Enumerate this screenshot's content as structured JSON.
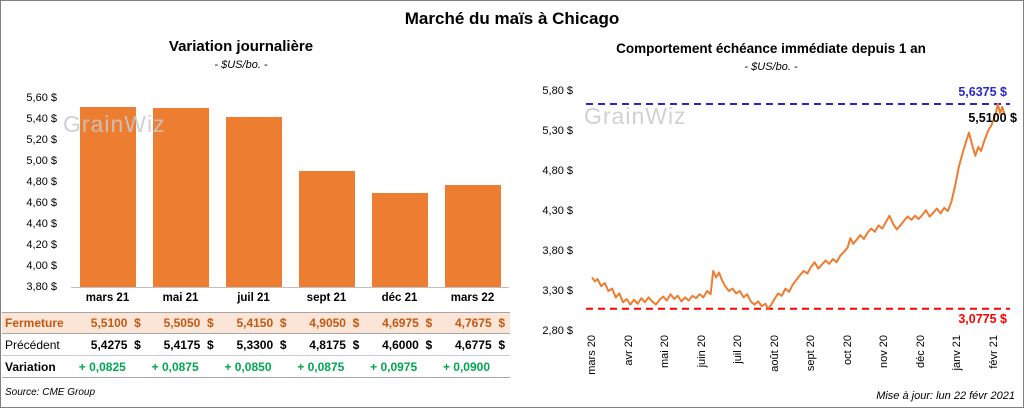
{
  "page": {
    "title": "Marché du maïs à Chicago",
    "source": "Source: CME Group",
    "updated": "Mise à jour: lun 22 févr 2021",
    "watermark": "GrainWiz"
  },
  "colors": {
    "bar": "#ED7D31",
    "line": "#ED7D31",
    "high_line": "#2929C8",
    "low_line": "#FF0000",
    "close_row_bg": "#FBE5D6",
    "close_row_text": "#C45911",
    "variation_text": "#00A651"
  },
  "chart_data": [
    {
      "type": "bar",
      "title": "Variation journalière",
      "subtitle": "- $US/bo. -",
      "categories": [
        "mars 21",
        "mai 21",
        "juil 21",
        "sept 21",
        "déc 21",
        "mars 22"
      ],
      "values": [
        5.51,
        5.505,
        5.415,
        4.905,
        4.6975,
        4.7675
      ],
      "ylim": [
        3.8,
        5.6
      ],
      "ytick_step": 0.2,
      "ytick_labels": [
        "5,60 $",
        "5,40 $",
        "5,20 $",
        "5,00 $",
        "4,80 $",
        "4,60 $",
        "4,40 $",
        "4,20 $",
        "4,00 $",
        "3,80 $"
      ],
      "grid": false,
      "legend": "none"
    },
    {
      "type": "line",
      "title": "Comportement échéance immédiate depuis 1 an",
      "subtitle": "- $US/bo. -",
      "x_labels": [
        "mars 20",
        "avr 20",
        "mai 20",
        "juin 20",
        "juil 20",
        "août 20",
        "sept 20",
        "oct 20",
        "nov 20",
        "déc 20",
        "janv 21",
        "févr 21"
      ],
      "ylim": [
        2.8,
        5.8
      ],
      "ytick_labels": [
        "5,80 $",
        "5,30 $",
        "4,80 $",
        "4,30 $",
        "3,80 $",
        "3,30 $",
        "2,80 $"
      ],
      "high_value": 5.6375,
      "high_label": "5,6375 $",
      "last_value": 5.51,
      "last_label": "5,5100 $",
      "low_value": 3.0775,
      "low_label": "3,0775 $",
      "grid": false,
      "legend": "none",
      "series": [
        {
          "name": "échéance immédiate",
          "points": [
            [
              0.0,
              3.47
            ],
            [
              0.08,
              3.42
            ],
            [
              0.15,
              3.45
            ],
            [
              0.25,
              3.36
            ],
            [
              0.35,
              3.4
            ],
            [
              0.45,
              3.3
            ],
            [
              0.55,
              3.33
            ],
            [
              0.65,
              3.22
            ],
            [
              0.75,
              3.27
            ],
            [
              0.85,
              3.16
            ],
            [
              0.95,
              3.2
            ],
            [
              1.05,
              3.13
            ],
            [
              1.15,
              3.19
            ],
            [
              1.25,
              3.14
            ],
            [
              1.35,
              3.21
            ],
            [
              1.45,
              3.16
            ],
            [
              1.55,
              3.22
            ],
            [
              1.65,
              3.17
            ],
            [
              1.75,
              3.13
            ],
            [
              1.85,
              3.19
            ],
            [
              1.95,
              3.23
            ],
            [
              2.05,
              3.18
            ],
            [
              2.15,
              3.26
            ],
            [
              2.25,
              3.2
            ],
            [
              2.35,
              3.24
            ],
            [
              2.45,
              3.17
            ],
            [
              2.55,
              3.22
            ],
            [
              2.65,
              3.18
            ],
            [
              2.75,
              3.24
            ],
            [
              2.85,
              3.21
            ],
            [
              2.95,
              3.26
            ],
            [
              3.05,
              3.22
            ],
            [
              3.15,
              3.3
            ],
            [
              3.25,
              3.26
            ],
            [
              3.32,
              3.55
            ],
            [
              3.4,
              3.47
            ],
            [
              3.48,
              3.53
            ],
            [
              3.56,
              3.44
            ],
            [
              3.65,
              3.36
            ],
            [
              3.75,
              3.3
            ],
            [
              3.85,
              3.33
            ],
            [
              3.95,
              3.27
            ],
            [
              4.05,
              3.3
            ],
            [
              4.15,
              3.22
            ],
            [
              4.25,
              3.26
            ],
            [
              4.35,
              3.17
            ],
            [
              4.45,
              3.13
            ],
            [
              4.55,
              3.17
            ],
            [
              4.65,
              3.11
            ],
            [
              4.75,
              3.14
            ],
            [
              4.82,
              3.08
            ],
            [
              4.9,
              3.12
            ],
            [
              5.0,
              3.2
            ],
            [
              5.1,
              3.27
            ],
            [
              5.2,
              3.24
            ],
            [
              5.3,
              3.33
            ],
            [
              5.4,
              3.29
            ],
            [
              5.5,
              3.38
            ],
            [
              5.6,
              3.44
            ],
            [
              5.7,
              3.5
            ],
            [
              5.8,
              3.55
            ],
            [
              5.9,
              3.52
            ],
            [
              6.0,
              3.6
            ],
            [
              6.1,
              3.66
            ],
            [
              6.2,
              3.58
            ],
            [
              6.3,
              3.63
            ],
            [
              6.4,
              3.68
            ],
            [
              6.5,
              3.64
            ],
            [
              6.6,
              3.7
            ],
            [
              6.7,
              3.66
            ],
            [
              6.8,
              3.74
            ],
            [
              6.9,
              3.79
            ],
            [
              7.0,
              3.84
            ],
            [
              7.08,
              3.96
            ],
            [
              7.16,
              3.89
            ],
            [
              7.25,
              3.94
            ],
            [
              7.35,
              4.0
            ],
            [
              7.45,
              3.95
            ],
            [
              7.55,
              4.03
            ],
            [
              7.65,
              4.08
            ],
            [
              7.75,
              4.04
            ],
            [
              7.85,
              4.12
            ],
            [
              7.95,
              4.08
            ],
            [
              8.05,
              4.16
            ],
            [
              8.15,
              4.24
            ],
            [
              8.25,
              4.14
            ],
            [
              8.35,
              4.07
            ],
            [
              8.45,
              4.12
            ],
            [
              8.55,
              4.18
            ],
            [
              8.65,
              4.23
            ],
            [
              8.75,
              4.19
            ],
            [
              8.85,
              4.24
            ],
            [
              8.95,
              4.2
            ],
            [
              9.05,
              4.25
            ],
            [
              9.15,
              4.31
            ],
            [
              9.25,
              4.23
            ],
            [
              9.35,
              4.28
            ],
            [
              9.45,
              4.33
            ],
            [
              9.55,
              4.27
            ],
            [
              9.65,
              4.34
            ],
            [
              9.75,
              4.3
            ],
            [
              9.85,
              4.42
            ],
            [
              9.95,
              4.62
            ],
            [
              10.05,
              4.85
            ],
            [
              10.15,
              5.02
            ],
            [
              10.25,
              5.17
            ],
            [
              10.33,
              5.28
            ],
            [
              10.42,
              5.12
            ],
            [
              10.5,
              4.99
            ],
            [
              10.58,
              5.1
            ],
            [
              10.66,
              5.05
            ],
            [
              10.75,
              5.18
            ],
            [
              10.85,
              5.3
            ],
            [
              10.95,
              5.38
            ],
            [
              11.05,
              5.5
            ],
            [
              11.12,
              5.64
            ],
            [
              11.18,
              5.52
            ],
            [
              11.24,
              5.6
            ],
            [
              11.3,
              5.51
            ]
          ]
        }
      ]
    }
  ],
  "table": {
    "rows": [
      {
        "label": "Fermeture",
        "values": [
          "5,5100  $",
          "5,5050  $",
          "5,4150  $",
          "4,9050  $",
          "4,6975  $",
          "4,7675  $"
        ]
      },
      {
        "label": "Précédent",
        "values": [
          "5,4275  $",
          "5,4175  $",
          "5,3300  $",
          "4,8175  $",
          "4,6000  $",
          "4,6775  $"
        ]
      },
      {
        "label": "Variation",
        "values": [
          "+ 0,0825",
          "+ 0,0875",
          "+ 0,0850",
          "+ 0,0875",
          "+ 0,0975",
          "+ 0,0900"
        ]
      }
    ]
  }
}
